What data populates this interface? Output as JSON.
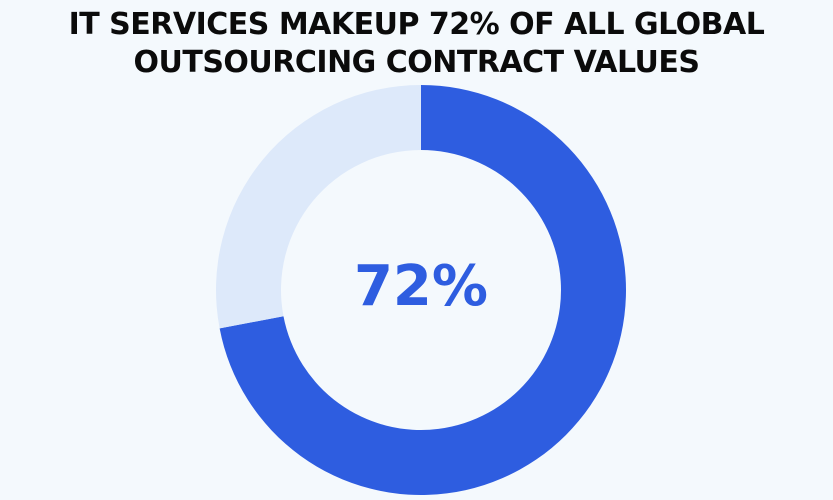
{
  "title_lines": [
    "IT SERVICES MAKEUP 72% OF ALL GLOBAL",
    "OUTSOURCING CONTRACT VALUES"
  ],
  "chart_data": {
    "type": "pie",
    "style": "donut",
    "title": "IT SERVICES MAKEUP 72% OF ALL GLOBAL OUTSOURCING CONTRACT VALUES",
    "slices": [
      {
        "value": 72,
        "color": "#2e5de0"
      },
      {
        "value": 28,
        "color": "#dde9fa"
      }
    ],
    "center_label": "72%",
    "center_label_color": "#2e5de0"
  },
  "colors": {
    "background": "#f4f9fd",
    "title_text": "#0b0b0b"
  }
}
